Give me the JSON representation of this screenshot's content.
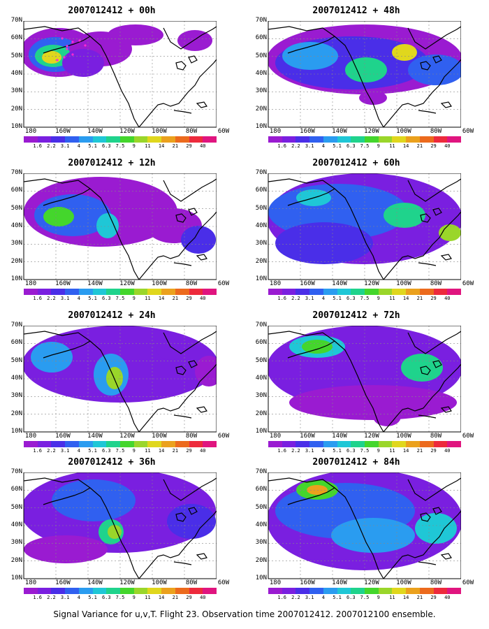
{
  "panels": [
    {
      "title": "2007012412 + 00h"
    },
    {
      "title": "2007012412 + 48h"
    },
    {
      "title": "2007012412 + 12h"
    },
    {
      "title": "2007012412 + 60h"
    },
    {
      "title": "2007012412 + 24h"
    },
    {
      "title": "2007012412 + 72h"
    },
    {
      "title": "2007012412 + 36h"
    },
    {
      "title": "2007012412 + 84h"
    }
  ],
  "lat_labels": [
    "70N",
    "60N",
    "50N",
    "40N",
    "30N",
    "20N",
    "10N"
  ],
  "lon_labels": [
    "180",
    "160W",
    "140W",
    "120W",
    "100W",
    "80W",
    "60W"
  ],
  "colorbar": {
    "labels": [
      "1.6",
      "2.2",
      "3.1",
      "4",
      "5.1",
      "6.3",
      "7.5",
      "9",
      "11",
      "14",
      "21",
      "29",
      "40"
    ],
    "colors": [
      "#9a1bd1",
      "#7a1fe0",
      "#4a2ee8",
      "#3060f0",
      "#2a9cf0",
      "#1fc7d6",
      "#1fd38c",
      "#44d62c",
      "#9ad62a",
      "#e0d71d",
      "#eba11d",
      "#ec6a1d",
      "#ed2a3c",
      "#e0157f"
    ]
  },
  "caption": "Signal Variance for u,v,T. Flight 23. Observation time 2007012412. 2007012100 ensemble."
}
